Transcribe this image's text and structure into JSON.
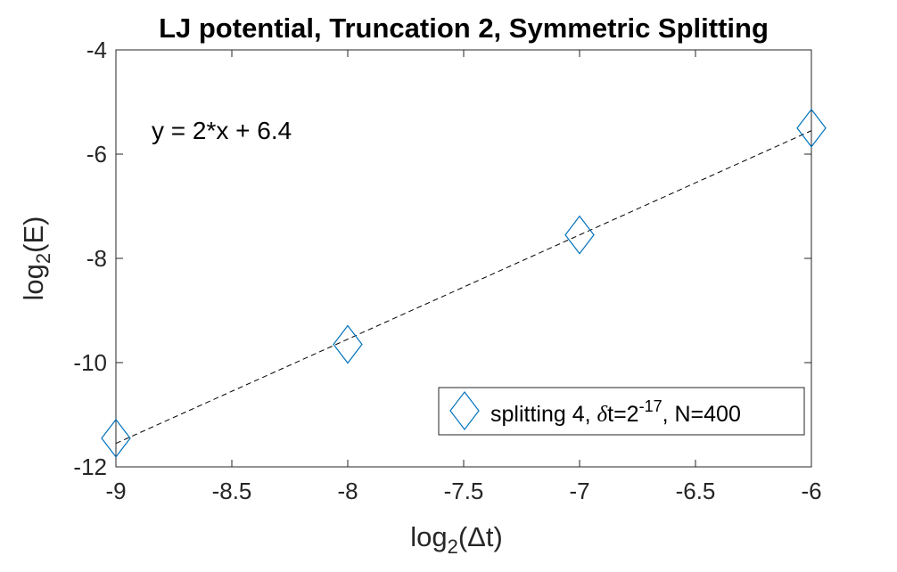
{
  "chart_data": {
    "type": "scatter",
    "title": "LJ potential, Truncation 2, Symmetric Splitting",
    "xlabel": {
      "prefix": "log",
      "sub": "2",
      "suffix": "(Δt)"
    },
    "ylabel": {
      "prefix": "log",
      "sub": "2",
      "suffix": "(E)"
    },
    "xlim": [
      -9,
      -6
    ],
    "ylim": [
      -12,
      -4
    ],
    "xticks": [
      -9,
      -8.5,
      -8,
      -7.5,
      -7,
      -6.5,
      -6
    ],
    "xtick_labels": [
      "-9",
      "-8.5",
      "-8",
      "-7.5",
      "-7",
      "-6.5",
      "-6"
    ],
    "yticks": [
      -12,
      -10,
      -8,
      -6,
      -4
    ],
    "ytick_labels": [
      "-12",
      "-10",
      "-8",
      "-6",
      "-4"
    ],
    "grid": false,
    "legend_position": "bottom-right",
    "series": [
      {
        "name": {
          "a": "splitting 4, ",
          "delta": "δ",
          "b": "t=2",
          "sup": "-17",
          "c": ", N=400"
        },
        "marker": "diamond",
        "color": "#0072BD",
        "x": [
          -9,
          -8,
          -7,
          -6
        ],
        "y": [
          -11.45,
          -9.65,
          -7.55,
          -5.5
        ]
      }
    ],
    "fit_line": {
      "style": "dashed",
      "color": "#000000",
      "x": [
        -9,
        -6
      ],
      "y": [
        -11.55,
        -5.55
      ]
    },
    "annotation": "y = 2*x + 6.4"
  }
}
